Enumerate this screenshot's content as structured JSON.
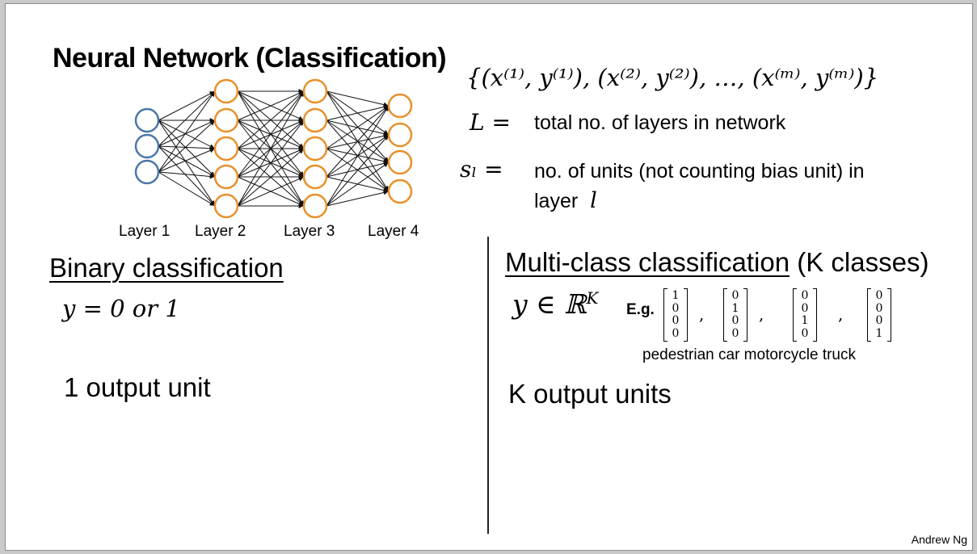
{
  "title": "Neural Network (Classification)",
  "training_set": "{(x⁽¹⁾, y⁽¹⁾), (x⁽²⁾, y⁽²⁾), …, (x⁽ᵐ⁾, y⁽ᵐ⁾)}",
  "definitions": {
    "L_symbol": "L =",
    "L_text": "total no. of layers in network",
    "s_symbol": "sₗ =",
    "s_text_line1": "no. of units (not counting bias unit) in",
    "s_text_line2": "layer",
    "s_text_var": "l"
  },
  "network": {
    "layer_labels": [
      "Layer 1",
      "Layer 2",
      "Layer 3",
      "Layer 4"
    ],
    "layer_sizes": [
      3,
      5,
      5,
      4
    ],
    "input_color": "#4a77a8",
    "hidden_color": "#e8902b",
    "edge_color": "#111111"
  },
  "binary": {
    "heading": "Binary classification",
    "equation": "y = 0 or 1",
    "outputs": "1 output unit"
  },
  "multiclass": {
    "heading": "Multi-class classification",
    "heading_suffix": "(K classes)",
    "equation": "y ∈ ℝ",
    "equation_sup": "K",
    "eg": "E.g.",
    "vectors": [
      [
        "1",
        "0",
        "0",
        "0"
      ],
      [
        "0",
        "1",
        "0",
        "0"
      ],
      [
        "0",
        "0",
        "1",
        "0"
      ],
      [
        "0",
        "0",
        "0",
        "1"
      ]
    ],
    "separator": ",",
    "class_names": "pedestrian car motorcycle truck",
    "outputs": "K output units"
  },
  "author": "Andrew Ng"
}
